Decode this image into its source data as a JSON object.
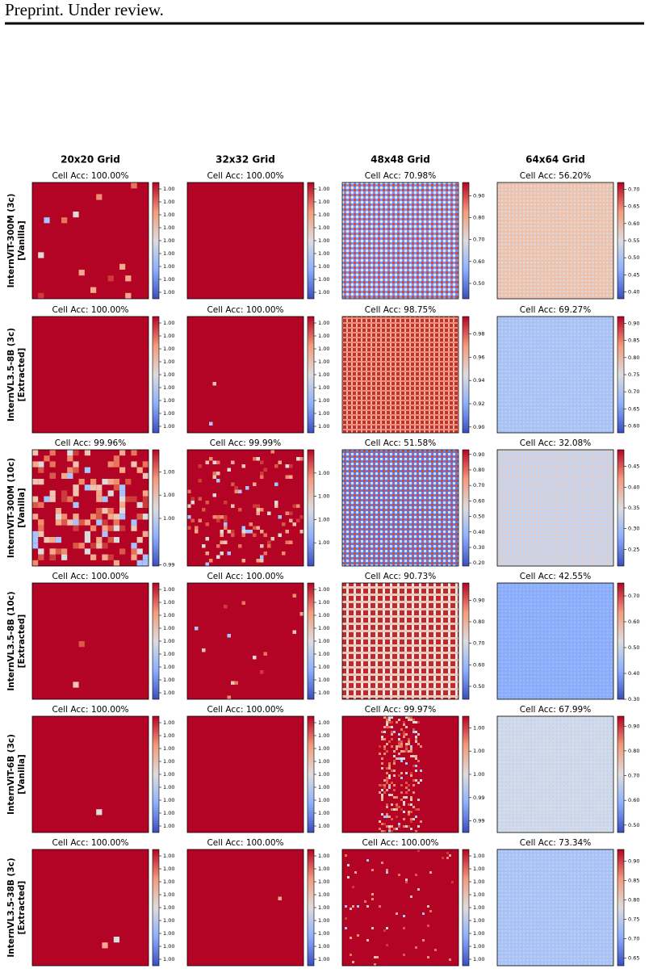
{
  "header": "Preprint. Under review.",
  "columns": [
    "20x20 Grid",
    "32x32 Grid",
    "48x48 Grid",
    "64x64 Grid"
  ],
  "rows": [
    {
      "model": "InternViT-300M (3c)",
      "variant": "[Vanilla]"
    },
    {
      "model": "InternVL3.5-8B (3c)",
      "variant": "[Extracted]"
    },
    {
      "model": "InternViT-300M (10c)",
      "variant": "[Vanilla]"
    },
    {
      "model": "InternVL3.5-8B (10c)",
      "variant": "[Extracted]"
    },
    {
      "model": "InternViT-6B (3c)",
      "variant": "[Vanilla]"
    },
    {
      "model": "InternVL3.5-38B (3c)",
      "variant": "[Extracted]"
    }
  ],
  "panels": [
    [
      {
        "title": "Cell Acc: 100.00%",
        "cbar_lim": [
          0.999905,
          0.999995
        ],
        "cbar_ticks": [
          {
            "value": 0.99991,
            "label": "1.00"
          },
          {
            "value": 0.99992,
            "label": "1.00"
          },
          {
            "value": 0.99993,
            "label": "1.00"
          },
          {
            "value": 0.99994,
            "label": "1.00"
          },
          {
            "value": 0.99995,
            "label": "1.00"
          },
          {
            "value": 0.99996,
            "label": "1.00"
          },
          {
            "value": 0.99997,
            "label": "1.00"
          },
          {
            "value": 0.99998,
            "label": "1.00"
          },
          {
            "value": 0.99999,
            "label": "1.00"
          }
        ]
      },
      {
        "title": "Cell Acc: 100.00%",
        "cbar_lim": [
          0.999905,
          0.999995
        ],
        "cbar_ticks": [
          {
            "value": 0.99991,
            "label": "1.00"
          },
          {
            "value": 0.99992,
            "label": "1.00"
          },
          {
            "value": 0.99993,
            "label": "1.00"
          },
          {
            "value": 0.99994,
            "label": "1.00"
          },
          {
            "value": 0.99995,
            "label": "1.00"
          },
          {
            "value": 0.99996,
            "label": "1.00"
          },
          {
            "value": 0.99997,
            "label": "1.00"
          },
          {
            "value": 0.99998,
            "label": "1.00"
          },
          {
            "value": 0.99999,
            "label": "1.00"
          }
        ]
      },
      {
        "title": "Cell Acc: 70.98%",
        "cbar_lim": [
          0.43,
          0.96
        ],
        "cbar_ticks": [
          {
            "value": 0.5,
            "label": "0.50"
          },
          {
            "value": 0.6,
            "label": "0.60"
          },
          {
            "value": 0.7,
            "label": "0.70"
          },
          {
            "value": 0.8,
            "label": "0.80"
          },
          {
            "value": 0.9,
            "label": "0.90"
          }
        ]
      },
      {
        "title": "Cell Acc: 56.20%",
        "cbar_lim": [
          0.38,
          0.72
        ],
        "cbar_ticks": [
          {
            "value": 0.4,
            "label": "0.40"
          },
          {
            "value": 0.45,
            "label": "0.45"
          },
          {
            "value": 0.5,
            "label": "0.50"
          },
          {
            "value": 0.55,
            "label": "0.55"
          },
          {
            "value": 0.6,
            "label": "0.60"
          },
          {
            "value": 0.65,
            "label": "0.65"
          },
          {
            "value": 0.7,
            "label": "0.70"
          }
        ]
      }
    ],
    [
      {
        "title": "Cell Acc: 100.00%",
        "cbar_lim": [
          0.999905,
          0.999995
        ],
        "cbar_ticks": [
          {
            "value": 0.99991,
            "label": "1.00"
          },
          {
            "value": 0.99992,
            "label": "1.00"
          },
          {
            "value": 0.99993,
            "label": "1.00"
          },
          {
            "value": 0.99994,
            "label": "1.00"
          },
          {
            "value": 0.99995,
            "label": "1.00"
          },
          {
            "value": 0.99996,
            "label": "1.00"
          },
          {
            "value": 0.99997,
            "label": "1.00"
          },
          {
            "value": 0.99998,
            "label": "1.00"
          },
          {
            "value": 0.99999,
            "label": "1.00"
          }
        ]
      },
      {
        "title": "Cell Acc: 100.00%",
        "cbar_lim": [
          0.999905,
          0.999995
        ],
        "cbar_ticks": [
          {
            "value": 0.99991,
            "label": "1.00"
          },
          {
            "value": 0.99992,
            "label": "1.00"
          },
          {
            "value": 0.99993,
            "label": "1.00"
          },
          {
            "value": 0.99994,
            "label": "1.00"
          },
          {
            "value": 0.99995,
            "label": "1.00"
          },
          {
            "value": 0.99996,
            "label": "1.00"
          },
          {
            "value": 0.99997,
            "label": "1.00"
          },
          {
            "value": 0.99998,
            "label": "1.00"
          },
          {
            "value": 0.99999,
            "label": "1.00"
          }
        ]
      },
      {
        "title": "Cell Acc: 98.75%",
        "cbar_lim": [
          0.895,
          0.995
        ],
        "cbar_ticks": [
          {
            "value": 0.9,
            "label": "0.90"
          },
          {
            "value": 0.92,
            "label": "0.92"
          },
          {
            "value": 0.94,
            "label": "0.94"
          },
          {
            "value": 0.96,
            "label": "0.96"
          },
          {
            "value": 0.98,
            "label": "0.98"
          }
        ]
      },
      {
        "title": "Cell Acc: 69.27%",
        "cbar_lim": [
          0.58,
          0.92
        ],
        "cbar_ticks": [
          {
            "value": 0.6,
            "label": "0.60"
          },
          {
            "value": 0.65,
            "label": "0.65"
          },
          {
            "value": 0.7,
            "label": "0.70"
          },
          {
            "value": 0.75,
            "label": "0.75"
          },
          {
            "value": 0.8,
            "label": "0.80"
          },
          {
            "value": 0.85,
            "label": "0.85"
          },
          {
            "value": 0.9,
            "label": "0.90"
          }
        ]
      }
    ],
    [
      {
        "title": "Cell Acc: 99.96%",
        "cbar_lim": [
          0.99485,
          0.99985
        ],
        "cbar_ticks": [
          {
            "value": 0.9949,
            "label": "0.99"
          },
          {
            "value": 0.9969,
            "label": "1.00"
          },
          {
            "value": 0.9979,
            "label": "1.00"
          },
          {
            "value": 0.9989,
            "label": "1.00"
          }
        ]
      },
      {
        "title": "Cell Acc: 99.99%",
        "cbar_lim": [
          0.9995,
          1.0
        ],
        "cbar_ticks": [
          {
            "value": 0.9996,
            "label": "1.00"
          },
          {
            "value": 0.9997,
            "label": "1.00"
          },
          {
            "value": 0.9998,
            "label": "1.00"
          },
          {
            "value": 0.9999,
            "label": "1.00"
          }
        ]
      },
      {
        "title": "Cell Acc: 51.58%",
        "cbar_lim": [
          0.18,
          0.93
        ],
        "cbar_ticks": [
          {
            "value": 0.2,
            "label": "0.20"
          },
          {
            "value": 0.3,
            "label": "0.30"
          },
          {
            "value": 0.4,
            "label": "0.40"
          },
          {
            "value": 0.5,
            "label": "0.50"
          },
          {
            "value": 0.6,
            "label": "0.60"
          },
          {
            "value": 0.7,
            "label": "0.70"
          },
          {
            "value": 0.8,
            "label": "0.80"
          },
          {
            "value": 0.9,
            "label": "0.90"
          }
        ]
      },
      {
        "title": "Cell Acc: 32.08%",
        "cbar_lim": [
          0.21,
          0.49
        ],
        "cbar_ticks": [
          {
            "value": 0.25,
            "label": "0.25"
          },
          {
            "value": 0.3,
            "label": "0.30"
          },
          {
            "value": 0.35,
            "label": "0.35"
          },
          {
            "value": 0.4,
            "label": "0.40"
          },
          {
            "value": 0.45,
            "label": "0.45"
          }
        ]
      }
    ],
    [
      {
        "title": "Cell Acc: 100.00%",
        "cbar_lim": [
          0.999905,
          0.999995
        ],
        "cbar_ticks": [
          {
            "value": 0.99991,
            "label": "1.00"
          },
          {
            "value": 0.99992,
            "label": "1.00"
          },
          {
            "value": 0.99993,
            "label": "1.00"
          },
          {
            "value": 0.99994,
            "label": "1.00"
          },
          {
            "value": 0.99995,
            "label": "1.00"
          },
          {
            "value": 0.99996,
            "label": "1.00"
          },
          {
            "value": 0.99997,
            "label": "1.00"
          },
          {
            "value": 0.99998,
            "label": "1.00"
          },
          {
            "value": 0.99999,
            "label": "1.00"
          }
        ]
      },
      {
        "title": "Cell Acc: 100.00%",
        "cbar_lim": [
          0.999905,
          0.999995
        ],
        "cbar_ticks": [
          {
            "value": 0.99991,
            "label": "1.00"
          },
          {
            "value": 0.99992,
            "label": "1.00"
          },
          {
            "value": 0.99993,
            "label": "1.00"
          },
          {
            "value": 0.99994,
            "label": "1.00"
          },
          {
            "value": 0.99995,
            "label": "1.00"
          },
          {
            "value": 0.99996,
            "label": "1.00"
          },
          {
            "value": 0.99997,
            "label": "1.00"
          },
          {
            "value": 0.99998,
            "label": "1.00"
          },
          {
            "value": 0.99999,
            "label": "1.00"
          }
        ]
      },
      {
        "title": "Cell Acc: 90.73%",
        "cbar_lim": [
          0.44,
          0.98
        ],
        "cbar_ticks": [
          {
            "value": 0.5,
            "label": "0.50"
          },
          {
            "value": 0.6,
            "label": "0.60"
          },
          {
            "value": 0.7,
            "label": "0.70"
          },
          {
            "value": 0.8,
            "label": "0.80"
          },
          {
            "value": 0.9,
            "label": "0.90"
          }
        ]
      },
      {
        "title": "Cell Acc: 42.55%",
        "cbar_lim": [
          0.3,
          0.75
        ],
        "cbar_ticks": [
          {
            "value": 0.3,
            "label": "0.30"
          },
          {
            "value": 0.4,
            "label": "0.40"
          },
          {
            "value": 0.5,
            "label": "0.50"
          },
          {
            "value": 0.6,
            "label": "0.60"
          },
          {
            "value": 0.7,
            "label": "0.70"
          }
        ]
      }
    ],
    [
      {
        "title": "Cell Acc: 100.00%",
        "cbar_lim": [
          0.999905,
          0.999995
        ],
        "cbar_ticks": [
          {
            "value": 0.99991,
            "label": "1.00"
          },
          {
            "value": 0.99992,
            "label": "1.00"
          },
          {
            "value": 0.99993,
            "label": "1.00"
          },
          {
            "value": 0.99994,
            "label": "1.00"
          },
          {
            "value": 0.99995,
            "label": "1.00"
          },
          {
            "value": 0.99996,
            "label": "1.00"
          },
          {
            "value": 0.99997,
            "label": "1.00"
          },
          {
            "value": 0.99998,
            "label": "1.00"
          },
          {
            "value": 0.99999,
            "label": "1.00"
          }
        ]
      },
      {
        "title": "Cell Acc: 100.00%",
        "cbar_lim": [
          0.999905,
          0.999995
        ],
        "cbar_ticks": [
          {
            "value": 0.99991,
            "label": "1.00"
          },
          {
            "value": 0.99992,
            "label": "1.00"
          },
          {
            "value": 0.99993,
            "label": "1.00"
          },
          {
            "value": 0.99994,
            "label": "1.00"
          },
          {
            "value": 0.99995,
            "label": "1.00"
          },
          {
            "value": 0.99996,
            "label": "1.00"
          },
          {
            "value": 0.99997,
            "label": "1.00"
          },
          {
            "value": 0.99998,
            "label": "1.00"
          },
          {
            "value": 0.99999,
            "label": "1.00"
          }
        ]
      },
      {
        "title": "Cell Acc: 99.97%",
        "cbar_lim": [
          0.99355,
          0.99805
        ],
        "cbar_ticks": [
          {
            "value": 0.994,
            "label": "0.99"
          },
          {
            "value": 0.9949,
            "label": "0.99"
          },
          {
            "value": 0.9958,
            "label": "1.00"
          },
          {
            "value": 0.9967,
            "label": "1.00"
          },
          {
            "value": 0.9976,
            "label": "1.00"
          }
        ]
      },
      {
        "title": "Cell Acc: 67.99%",
        "cbar_lim": [
          0.47,
          0.94
        ],
        "cbar_ticks": [
          {
            "value": 0.5,
            "label": "0.50"
          },
          {
            "value": 0.6,
            "label": "0.60"
          },
          {
            "value": 0.7,
            "label": "0.70"
          },
          {
            "value": 0.8,
            "label": "0.80"
          },
          {
            "value": 0.9,
            "label": "0.90"
          }
        ]
      }
    ],
    [
      {
        "title": "Cell Acc: 100.00%",
        "cbar_lim": [
          0.999905,
          0.999995
        ],
        "cbar_ticks": [
          {
            "value": 0.99991,
            "label": "1.00"
          },
          {
            "value": 0.99992,
            "label": "1.00"
          },
          {
            "value": 0.99993,
            "label": "1.00"
          },
          {
            "value": 0.99994,
            "label": "1.00"
          },
          {
            "value": 0.99995,
            "label": "1.00"
          },
          {
            "value": 0.99996,
            "label": "1.00"
          },
          {
            "value": 0.99997,
            "label": "1.00"
          },
          {
            "value": 0.99998,
            "label": "1.00"
          },
          {
            "value": 0.99999,
            "label": "1.00"
          }
        ]
      },
      {
        "title": "Cell Acc: 100.00%",
        "cbar_lim": [
          0.999905,
          0.999995
        ],
        "cbar_ticks": [
          {
            "value": 0.99991,
            "label": "1.00"
          },
          {
            "value": 0.99992,
            "label": "1.00"
          },
          {
            "value": 0.99993,
            "label": "1.00"
          },
          {
            "value": 0.99994,
            "label": "1.00"
          },
          {
            "value": 0.99995,
            "label": "1.00"
          },
          {
            "value": 0.99996,
            "label": "1.00"
          },
          {
            "value": 0.99997,
            "label": "1.00"
          },
          {
            "value": 0.99998,
            "label": "1.00"
          },
          {
            "value": 0.99999,
            "label": "1.00"
          }
        ]
      },
      {
        "title": "Cell Acc: 100.00%",
        "cbar_lim": [
          0.999905,
          0.999995
        ],
        "cbar_ticks": [
          {
            "value": 0.99991,
            "label": "1.00"
          },
          {
            "value": 0.99992,
            "label": "1.00"
          },
          {
            "value": 0.99993,
            "label": "1.00"
          },
          {
            "value": 0.99994,
            "label": "1.00"
          },
          {
            "value": 0.99995,
            "label": "1.00"
          },
          {
            "value": 0.99996,
            "label": "1.00"
          },
          {
            "value": 0.99997,
            "label": "1.00"
          },
          {
            "value": 0.99998,
            "label": "1.00"
          },
          {
            "value": 0.99999,
            "label": "1.00"
          }
        ]
      },
      {
        "title": "Cell Acc: 73.34%",
        "cbar_lim": [
          0.63,
          0.93
        ],
        "cbar_ticks": [
          {
            "value": 0.65,
            "label": "0.65"
          },
          {
            "value": 0.7,
            "label": "0.70"
          },
          {
            "value": 0.75,
            "label": "0.75"
          },
          {
            "value": 0.8,
            "label": "0.80"
          },
          {
            "value": 0.85,
            "label": "0.85"
          },
          {
            "value": 0.9,
            "label": "0.90"
          }
        ]
      }
    ]
  ]
}
